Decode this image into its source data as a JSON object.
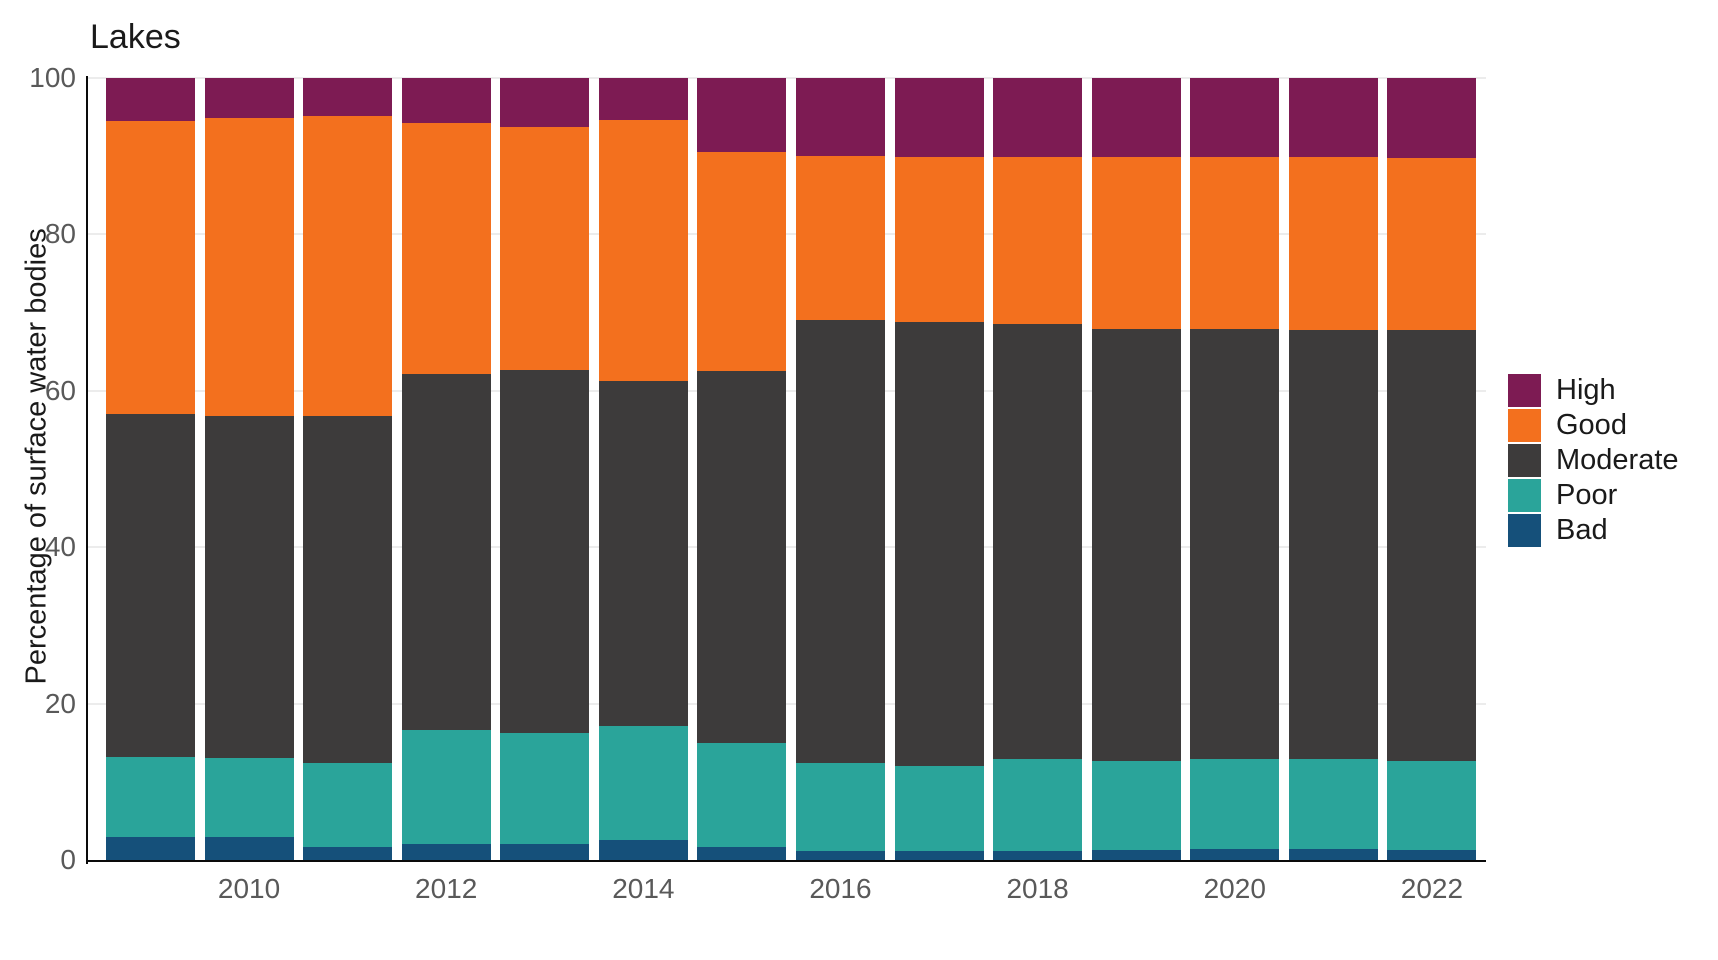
{
  "chart_data": {
    "type": "bar",
    "stacked": true,
    "title": "Lakes",
    "ylabel": "Percentage of surface water bodies",
    "xlabel": "",
    "ylim": [
      0,
      100
    ],
    "yticks": [
      0,
      20,
      40,
      60,
      80,
      100
    ],
    "grid": true,
    "categories": [
      2009,
      2010,
      2011,
      2012,
      2013,
      2014,
      2015,
      2016,
      2017,
      2018,
      2019,
      2020,
      2021,
      2022
    ],
    "xtick_labels": [
      "2010",
      "2012",
      "2014",
      "2016",
      "2018",
      "2020",
      "2022"
    ],
    "xtick_years": [
      2010,
      2012,
      2014,
      2016,
      2018,
      2020,
      2022
    ],
    "series": [
      {
        "name": "Bad",
        "color": "#15507a",
        "values": [
          2.9,
          2.9,
          1.7,
          2.0,
          2.0,
          2.5,
          1.6,
          1.2,
          1.2,
          1.2,
          1.3,
          1.4,
          1.4,
          1.3
        ]
      },
      {
        "name": "Poor",
        "color": "#2aa49a",
        "values": [
          10.3,
          10.1,
          10.7,
          14.6,
          14.2,
          14.6,
          13.4,
          11.2,
          10.8,
          11.7,
          11.4,
          11.5,
          11.5,
          11.4
        ]
      },
      {
        "name": "Moderate",
        "color": "#3d3b3b",
        "values": [
          43.8,
          43.8,
          44.4,
          45.6,
          46.4,
          44.2,
          47.5,
          56.7,
          56.8,
          55.7,
          55.2,
          55.0,
          54.9,
          55.1
        ]
      },
      {
        "name": "Good",
        "color": "#f3701e",
        "values": [
          37.5,
          38.1,
          38.3,
          32.1,
          31.1,
          33.3,
          28.0,
          20.9,
          21.1,
          21.3,
          22.0,
          22.0,
          22.1,
          22.0
        ]
      },
      {
        "name": "High",
        "color": "#7d1b53",
        "values": [
          5.5,
          5.1,
          4.9,
          5.7,
          6.3,
          5.4,
          9.5,
          10.0,
          10.1,
          10.1,
          10.1,
          10.1,
          10.1,
          10.2
        ]
      }
    ],
    "legend": {
      "position": "right",
      "order": [
        "High",
        "Good",
        "Moderate",
        "Poor",
        "Bad"
      ]
    }
  }
}
